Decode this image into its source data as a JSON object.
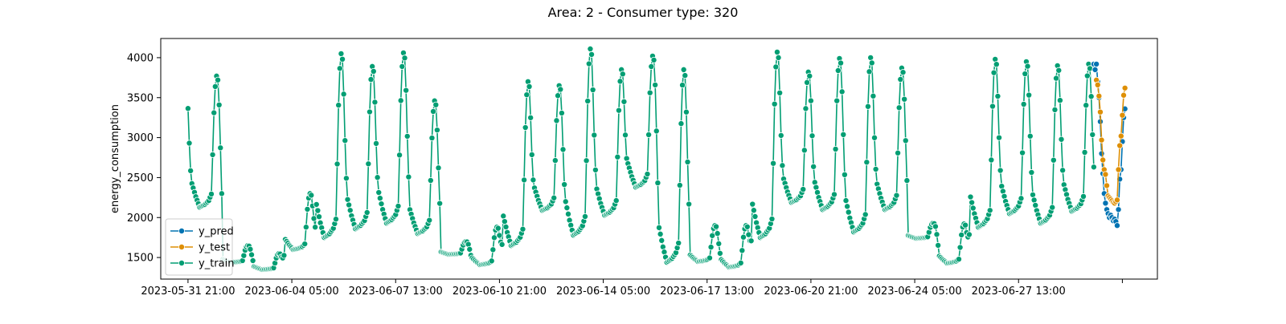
{
  "chart_data": {
    "type": "line",
    "title": "Area: 2 - Consumer type: 320",
    "xlabel": "",
    "ylabel": "energy_consumption",
    "x_axis": {
      "type": "datetime",
      "range": [
        "2023-05-31T00:00",
        "2023-07-02T00:00"
      ],
      "ticks": [
        {
          "value": "2023-05-31T21:00",
          "label": "2023-05-31 21:00"
        },
        {
          "value": "2023-06-04T05:00",
          "label": "2023-06-04 05:00"
        },
        {
          "value": "2023-06-07T13:00",
          "label": "2023-06-07 13:00"
        },
        {
          "value": "2023-06-10T21:00",
          "label": "2023-06-10 21:00"
        },
        {
          "value": "2023-06-14T05:00",
          "label": "2023-06-14 05:00"
        },
        {
          "value": "2023-06-17T13:00",
          "label": "2023-06-17 13:00"
        },
        {
          "value": "2023-06-20T21:00",
          "label": "2023-06-20 21:00"
        },
        {
          "value": "2023-06-24T05:00",
          "label": "2023-06-24 05:00"
        },
        {
          "value": "2023-06-27T13:00",
          "label": "2023-06-27 13:00"
        },
        {
          "value": "2023-06-30T21:00",
          "label": ""
        }
      ]
    },
    "ylim": [
      1230,
      4240
    ],
    "yticks": [
      1500,
      2000,
      2500,
      3000,
      3500,
      4000
    ],
    "grid": false,
    "legend": "lower-left",
    "train_span": {
      "start": "2023-05-31T21:00",
      "end": "2023-06-29T23:00",
      "step_hours": 1
    },
    "daily_peaks_train": [
      3750,
      3770,
      1650,
      1550,
      2300,
      4050,
      3890,
      4060,
      3460,
      1700,
      1880,
      3700,
      3650,
      4110,
      3850,
      4020,
      3850,
      1900,
      1900,
      4070,
      3820,
      3990,
      4000,
      3870,
      1930,
      1920,
      3980,
      3950,
      3900,
      3920
    ],
    "daily_troughs_train": [
      2000,
      2130,
      1440,
      1350,
      1600,
      1750,
      1860,
      1930,
      1800,
      1540,
      1410,
      1650,
      2090,
      1780,
      2030,
      2380,
      1440,
      1450,
      1380,
      1750,
      2190,
      2100,
      1820,
      2100,
      1740,
      1430,
      1880,
      2050,
      1930,
      2080
    ],
    "series": [
      {
        "name": "y_pred",
        "color": "#0173b2",
        "x": [
          "2023-06-29T23:00",
          "2023-06-30T00:00",
          "2023-06-30T01:00",
          "2023-06-30T02:00",
          "2023-06-30T03:00",
          "2023-06-30T04:00",
          "2023-06-30T05:00",
          "2023-06-30T06:00",
          "2023-06-30T07:00",
          "2023-06-30T08:00",
          "2023-06-30T09:00",
          "2023-06-30T10:00",
          "2023-06-30T11:00",
          "2023-06-30T12:00",
          "2023-06-30T13:00",
          "2023-06-30T14:00",
          "2023-06-30T15:00",
          "2023-06-30T16:00",
          "2023-06-30T17:00",
          "2023-06-30T18:00",
          "2023-06-30T19:00",
          "2023-06-30T20:00",
          "2023-06-30T21:00",
          "2023-06-30T22:00",
          "2023-06-30T23:00"
        ],
        "values": [
          3920,
          3850,
          3920,
          3700,
          3500,
          3200,
          2800,
          2550,
          2300,
          2180,
          2100,
          2050,
          2000,
          2030,
          2000,
          1960,
          1980,
          1950,
          1900,
          2100,
          2480,
          2600,
          2950,
          3250,
          3360
        ]
      },
      {
        "name": "y_test",
        "color": "#de8f05",
        "x": [
          "2023-06-30T01:00",
          "2023-06-30T02:00",
          "2023-06-30T03:00",
          "2023-06-30T04:00",
          "2023-06-30T05:00",
          "2023-06-30T06:00",
          "2023-06-30T07:00",
          "2023-06-30T08:00",
          "2023-06-30T09:00",
          "2023-06-30T10:00",
          "2023-06-30T11:00",
          "2023-06-30T12:00",
          "2023-06-30T13:00",
          "2023-06-30T14:00",
          "2023-06-30T15:00",
          "2023-06-30T16:00",
          "2023-06-30T17:00",
          "2023-06-30T18:00",
          "2023-06-30T19:00",
          "2023-06-30T20:00",
          "2023-06-30T21:00",
          "2023-06-30T22:00",
          "2023-06-30T23:00"
        ],
        "values": [
          3720,
          3660,
          3520,
          3320,
          2970,
          2720,
          2600,
          2540,
          2400,
          2270,
          2250,
          2230,
          2210,
          2190,
          2180,
          2200,
          2220,
          2600,
          2900,
          3020,
          3280,
          3530,
          3620
        ]
      },
      {
        "name": "y_train",
        "color": "#029e73"
      }
    ]
  }
}
